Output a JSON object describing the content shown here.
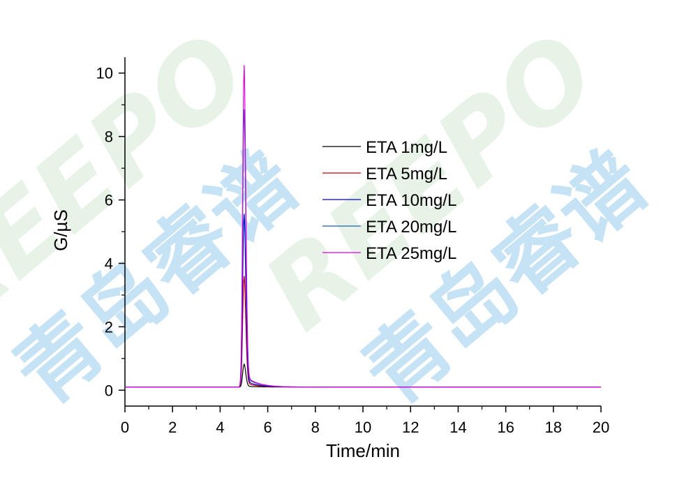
{
  "chart_data": {
    "type": "line",
    "title": "",
    "xlabel": "Time/min",
    "ylabel": "G/µS",
    "xlim": [
      0,
      20
    ],
    "ylim": [
      -0.5,
      10.5
    ],
    "xticks": [
      0,
      2,
      4,
      6,
      8,
      10,
      12,
      14,
      16,
      18,
      20
    ],
    "yticks": [
      0,
      2,
      4,
      6,
      8,
      10
    ],
    "grid": false,
    "legend_position": "top-right",
    "baseline": 0.1,
    "peak_center": 5.0,
    "series": [
      {
        "name": "ETA 1mg/L",
        "color": "#000000",
        "peak_height": 0.8
      },
      {
        "name": "ETA 5mg/L",
        "color": "#d40000",
        "peak_height": 3.5
      },
      {
        "name": "ETA 10mg/L",
        "color": "#0000d4",
        "peak_height": 5.4
      },
      {
        "name": "ETA 20mg/L",
        "color": "#1f5fa8",
        "peak_height": 8.6
      },
      {
        "name": "ETA 25mg/L",
        "color": "#e000e0",
        "peak_height": 9.95
      }
    ]
  },
  "watermark": {
    "logo_text": "REEPO",
    "chinese_text": "青岛睿谱",
    "colors": [
      "#bfe0f5",
      "#e4f2e4"
    ]
  }
}
